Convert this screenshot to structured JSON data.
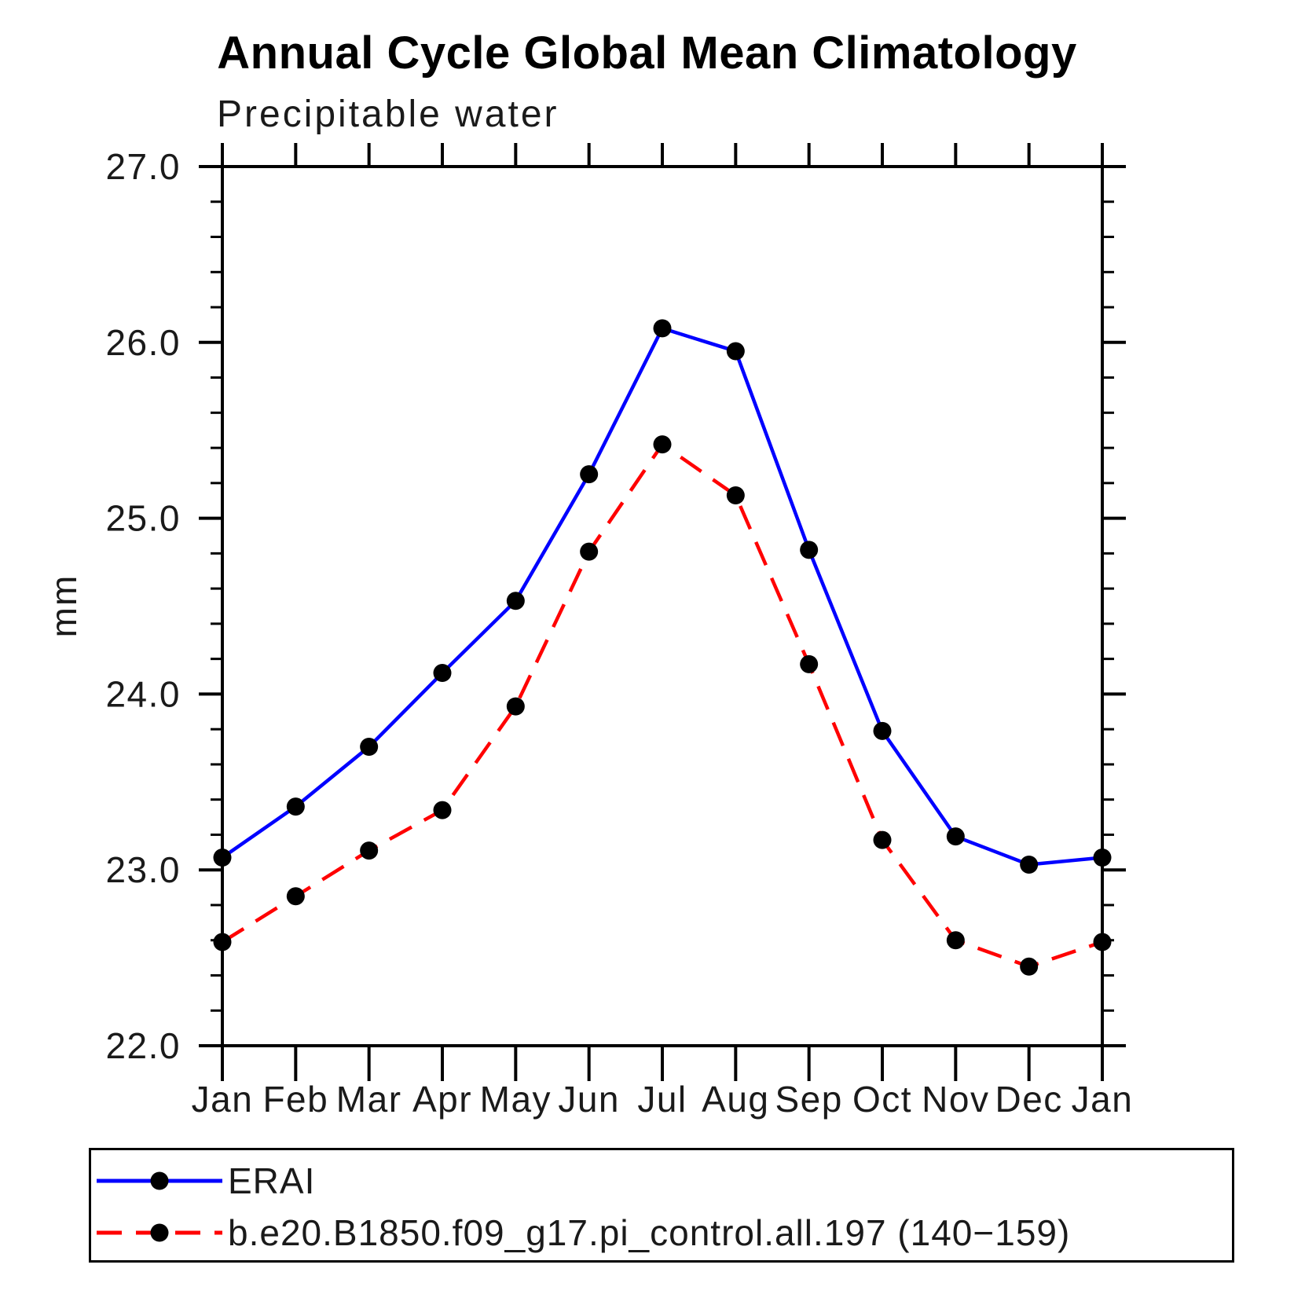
{
  "page": {
    "background": "#ffffff",
    "title": "Annual Cycle Global Mean Climatology"
  },
  "chart_data": {
    "type": "line",
    "title": "Annual Cycle Global Mean Climatology",
    "subtitle": "Precipitable water",
    "xlabel": "",
    "ylabel": "mm",
    "categories": [
      "Jan",
      "Feb",
      "Mar",
      "Apr",
      "May",
      "Jun",
      "Jul",
      "Aug",
      "Sep",
      "Oct",
      "Nov",
      "Dec",
      "Jan"
    ],
    "ylim": [
      22.0,
      27.0
    ],
    "ytick_major_interval": 1.0,
    "ytick_minor_interval": 0.2,
    "ytick_labels": [
      "22.0",
      "23.0",
      "24.0",
      "25.0",
      "26.0",
      "27.0"
    ],
    "grid": false,
    "frame": true,
    "legend_position": "bottom-left-box",
    "marker": "filled-circle",
    "series": [
      {
        "name": "ERAI",
        "color": "#0000ff",
        "line_style": "solid",
        "dash": null,
        "marker_color": "#000000",
        "values": [
          23.07,
          23.36,
          23.7,
          24.12,
          24.53,
          25.25,
          26.08,
          25.95,
          24.82,
          23.79,
          23.19,
          23.03,
          23.07
        ]
      },
      {
        "name": "b.e20.B1850.f09_g17.pi_control.all.197 (140−159)",
        "color": "#ff0000",
        "line_style": "dashed",
        "dash": "32 18",
        "marker_color": "#000000",
        "values": [
          22.59,
          22.85,
          23.11,
          23.34,
          23.93,
          24.81,
          25.42,
          25.13,
          24.17,
          23.17,
          22.6,
          22.45,
          22.59
        ]
      }
    ]
  }
}
